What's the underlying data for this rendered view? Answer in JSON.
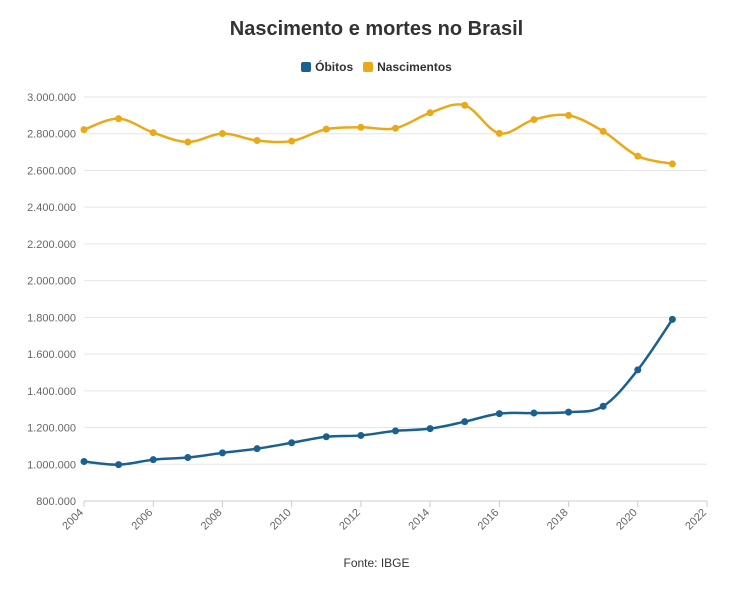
{
  "chart_data": {
    "type": "line",
    "title": "Nascimento e mortes no Brasil",
    "source": "Fonte: IBGE",
    "xlim": [
      2004,
      2022
    ],
    "ylim": [
      800000,
      3000000
    ],
    "x_ticks": [
      2004,
      2006,
      2008,
      2010,
      2012,
      2014,
      2016,
      2018,
      2020,
      2022
    ],
    "y_ticks": [
      800000,
      1000000,
      1200000,
      1400000,
      1600000,
      1800000,
      2000000,
      2200000,
      2400000,
      2600000,
      2800000,
      3000000
    ],
    "y_tick_labels": [
      "800.000",
      "1.000.000",
      "1.200.000",
      "1.400.000",
      "1.600.000",
      "1.800.000",
      "2.000.000",
      "2.200.000",
      "2.400.000",
      "2.600.000",
      "2.800.000",
      "3.000.000"
    ],
    "x": [
      2004,
      2005,
      2006,
      2007,
      2008,
      2009,
      2010,
      2011,
      2012,
      2013,
      2014,
      2015,
      2016,
      2017,
      2018,
      2019,
      2020,
      2021
    ],
    "series": [
      {
        "name": "Óbitos",
        "color": "#1b6190",
        "values": [
          1015000,
          998000,
          1025000,
          1037000,
          1062000,
          1085000,
          1117000,
          1150000,
          1157000,
          1182000,
          1194000,
          1232000,
          1276000,
          1279000,
          1284000,
          1316000,
          1514000,
          1789000
        ]
      },
      {
        "name": "Nascimentos",
        "color": "#eaaa18",
        "values": [
          2822000,
          2882000,
          2806000,
          2755000,
          2801000,
          2763000,
          2760000,
          2825000,
          2835000,
          2830000,
          2914000,
          2955000,
          2802000,
          2877000,
          2900000,
          2813000,
          2678000,
          2636000
        ]
      }
    ]
  },
  "legend": {
    "items": [
      {
        "label": "Óbitos",
        "color": "#1b6190"
      },
      {
        "label": "Nascimentos",
        "color": "#eaaa18"
      }
    ]
  }
}
